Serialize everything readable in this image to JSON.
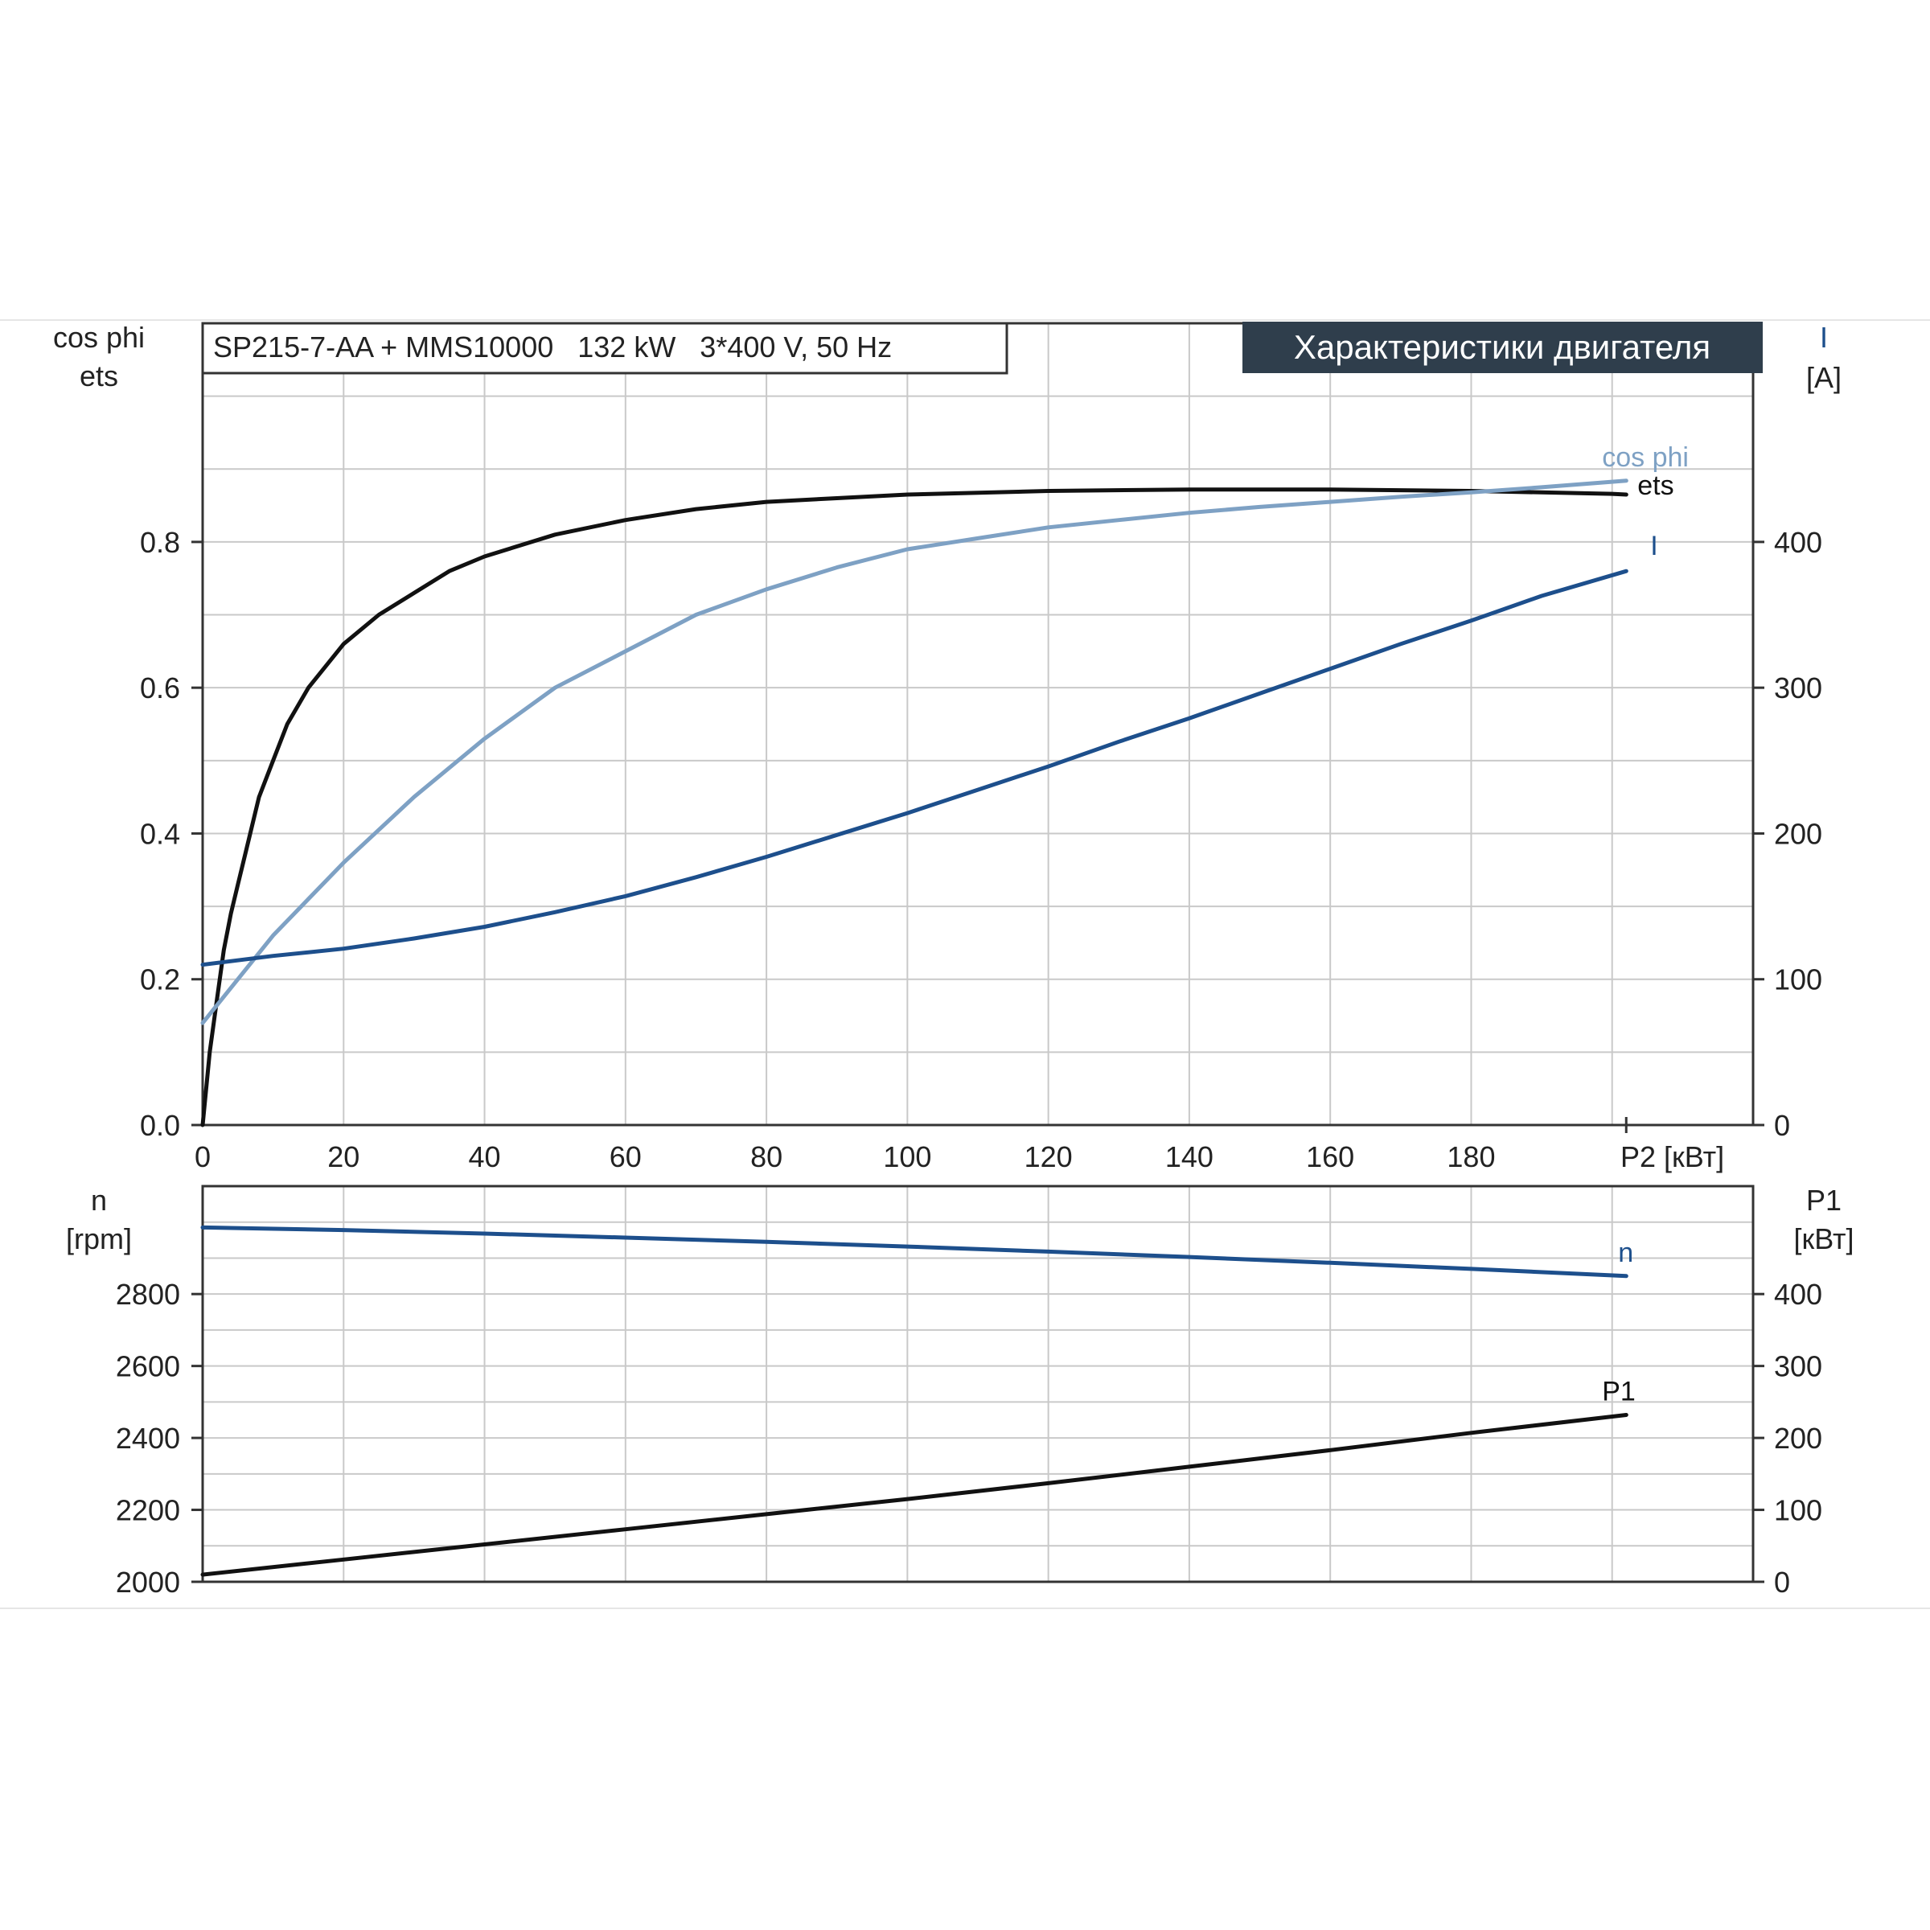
{
  "chart_data": [
    {
      "type": "line",
      "subtitle": "SP215-7-AA + MMS10000   132 kW   3*400 V, 50 Hz",
      "title": "Характеристики двигателя",
      "xlabel": "P2 [кВт]",
      "xlim": [
        0,
        220
      ],
      "xticks": [
        "0",
        "20",
        "40",
        "60",
        "80",
        "100",
        "120",
        "140",
        "160",
        "180"
      ],
      "ylabel_left": [
        "cos phi",
        "ets"
      ],
      "ylim_left": [
        0,
        1.1
      ],
      "yticks_left": [
        "0.0",
        "0.2",
        "0.4",
        "0.6",
        "0.8"
      ],
      "ylabel_right": [
        "I",
        "[A]"
      ],
      "ylim_right": [
        0,
        550
      ],
      "yticks_right": [
        "0",
        "100",
        "200",
        "300",
        "400"
      ],
      "grid": true,
      "series": [
        {
          "name": "ets",
          "axis": "left",
          "color": "#111111",
          "x": [
            0,
            1,
            2,
            3,
            4,
            5,
            6,
            8,
            10,
            12,
            15,
            20,
            25,
            30,
            35,
            40,
            50,
            60,
            70,
            80,
            90,
            100,
            120,
            140,
            160,
            180,
            200,
            202
          ],
          "y": [
            0.0,
            0.1,
            0.17,
            0.24,
            0.29,
            0.33,
            0.37,
            0.45,
            0.5,
            0.55,
            0.6,
            0.66,
            0.7,
            0.73,
            0.76,
            0.78,
            0.81,
            0.83,
            0.845,
            0.855,
            0.86,
            0.865,
            0.87,
            0.872,
            0.872,
            0.87,
            0.866,
            0.865
          ]
        },
        {
          "name": "cos phi",
          "axis": "left",
          "color": "#7ea1c4",
          "x": [
            0,
            5,
            10,
            20,
            30,
            40,
            50,
            60,
            70,
            80,
            90,
            100,
            110,
            120,
            130,
            140,
            150,
            160,
            170,
            180,
            190,
            202
          ],
          "y": [
            0.14,
            0.2,
            0.26,
            0.36,
            0.45,
            0.53,
            0.6,
            0.65,
            0.7,
            0.735,
            0.765,
            0.79,
            0.805,
            0.82,
            0.83,
            0.84,
            0.848,
            0.855,
            0.862,
            0.868,
            0.875,
            0.884
          ]
        },
        {
          "name": "I",
          "axis": "right",
          "color": "#1d4f8c",
          "x": [
            0,
            10,
            20,
            30,
            40,
            50,
            60,
            70,
            80,
            90,
            100,
            110,
            120,
            130,
            140,
            150,
            160,
            170,
            180,
            190,
            202
          ],
          "y": [
            110,
            116,
            121,
            128,
            136,
            146,
            157,
            170,
            184,
            199,
            214,
            230,
            246,
            263,
            279,
            296,
            313,
            330,
            346,
            363,
            380
          ]
        }
      ]
    },
    {
      "type": "line",
      "xlim": [
        0,
        220
      ],
      "ylabel_left": [
        "n",
        "[rpm]"
      ],
      "ylim_left": [
        2000,
        3100
      ],
      "yticks_left": [
        "2000",
        "2200",
        "2400",
        "2600",
        "2800"
      ],
      "ylabel_right": [
        "P1",
        "[кВт]"
      ],
      "ylim_right": [
        0,
        550
      ],
      "yticks_right": [
        "0",
        "100",
        "200",
        "300",
        "400"
      ],
      "grid": true,
      "series": [
        {
          "name": "n",
          "axis": "left",
          "color": "#1d4f8c",
          "x": [
            0,
            20,
            40,
            60,
            80,
            100,
            120,
            140,
            160,
            180,
            202
          ],
          "y": [
            2985,
            2978,
            2968,
            2957,
            2945,
            2932,
            2918,
            2903,
            2887,
            2870,
            2850
          ]
        },
        {
          "name": "P1",
          "axis": "right",
          "color": "#111111",
          "x": [
            0,
            20,
            40,
            60,
            80,
            100,
            120,
            140,
            160,
            180,
            202
          ],
          "y": [
            10,
            31,
            52,
            73,
            94,
            115,
            137,
            160,
            183,
            207,
            232
          ]
        }
      ]
    }
  ]
}
